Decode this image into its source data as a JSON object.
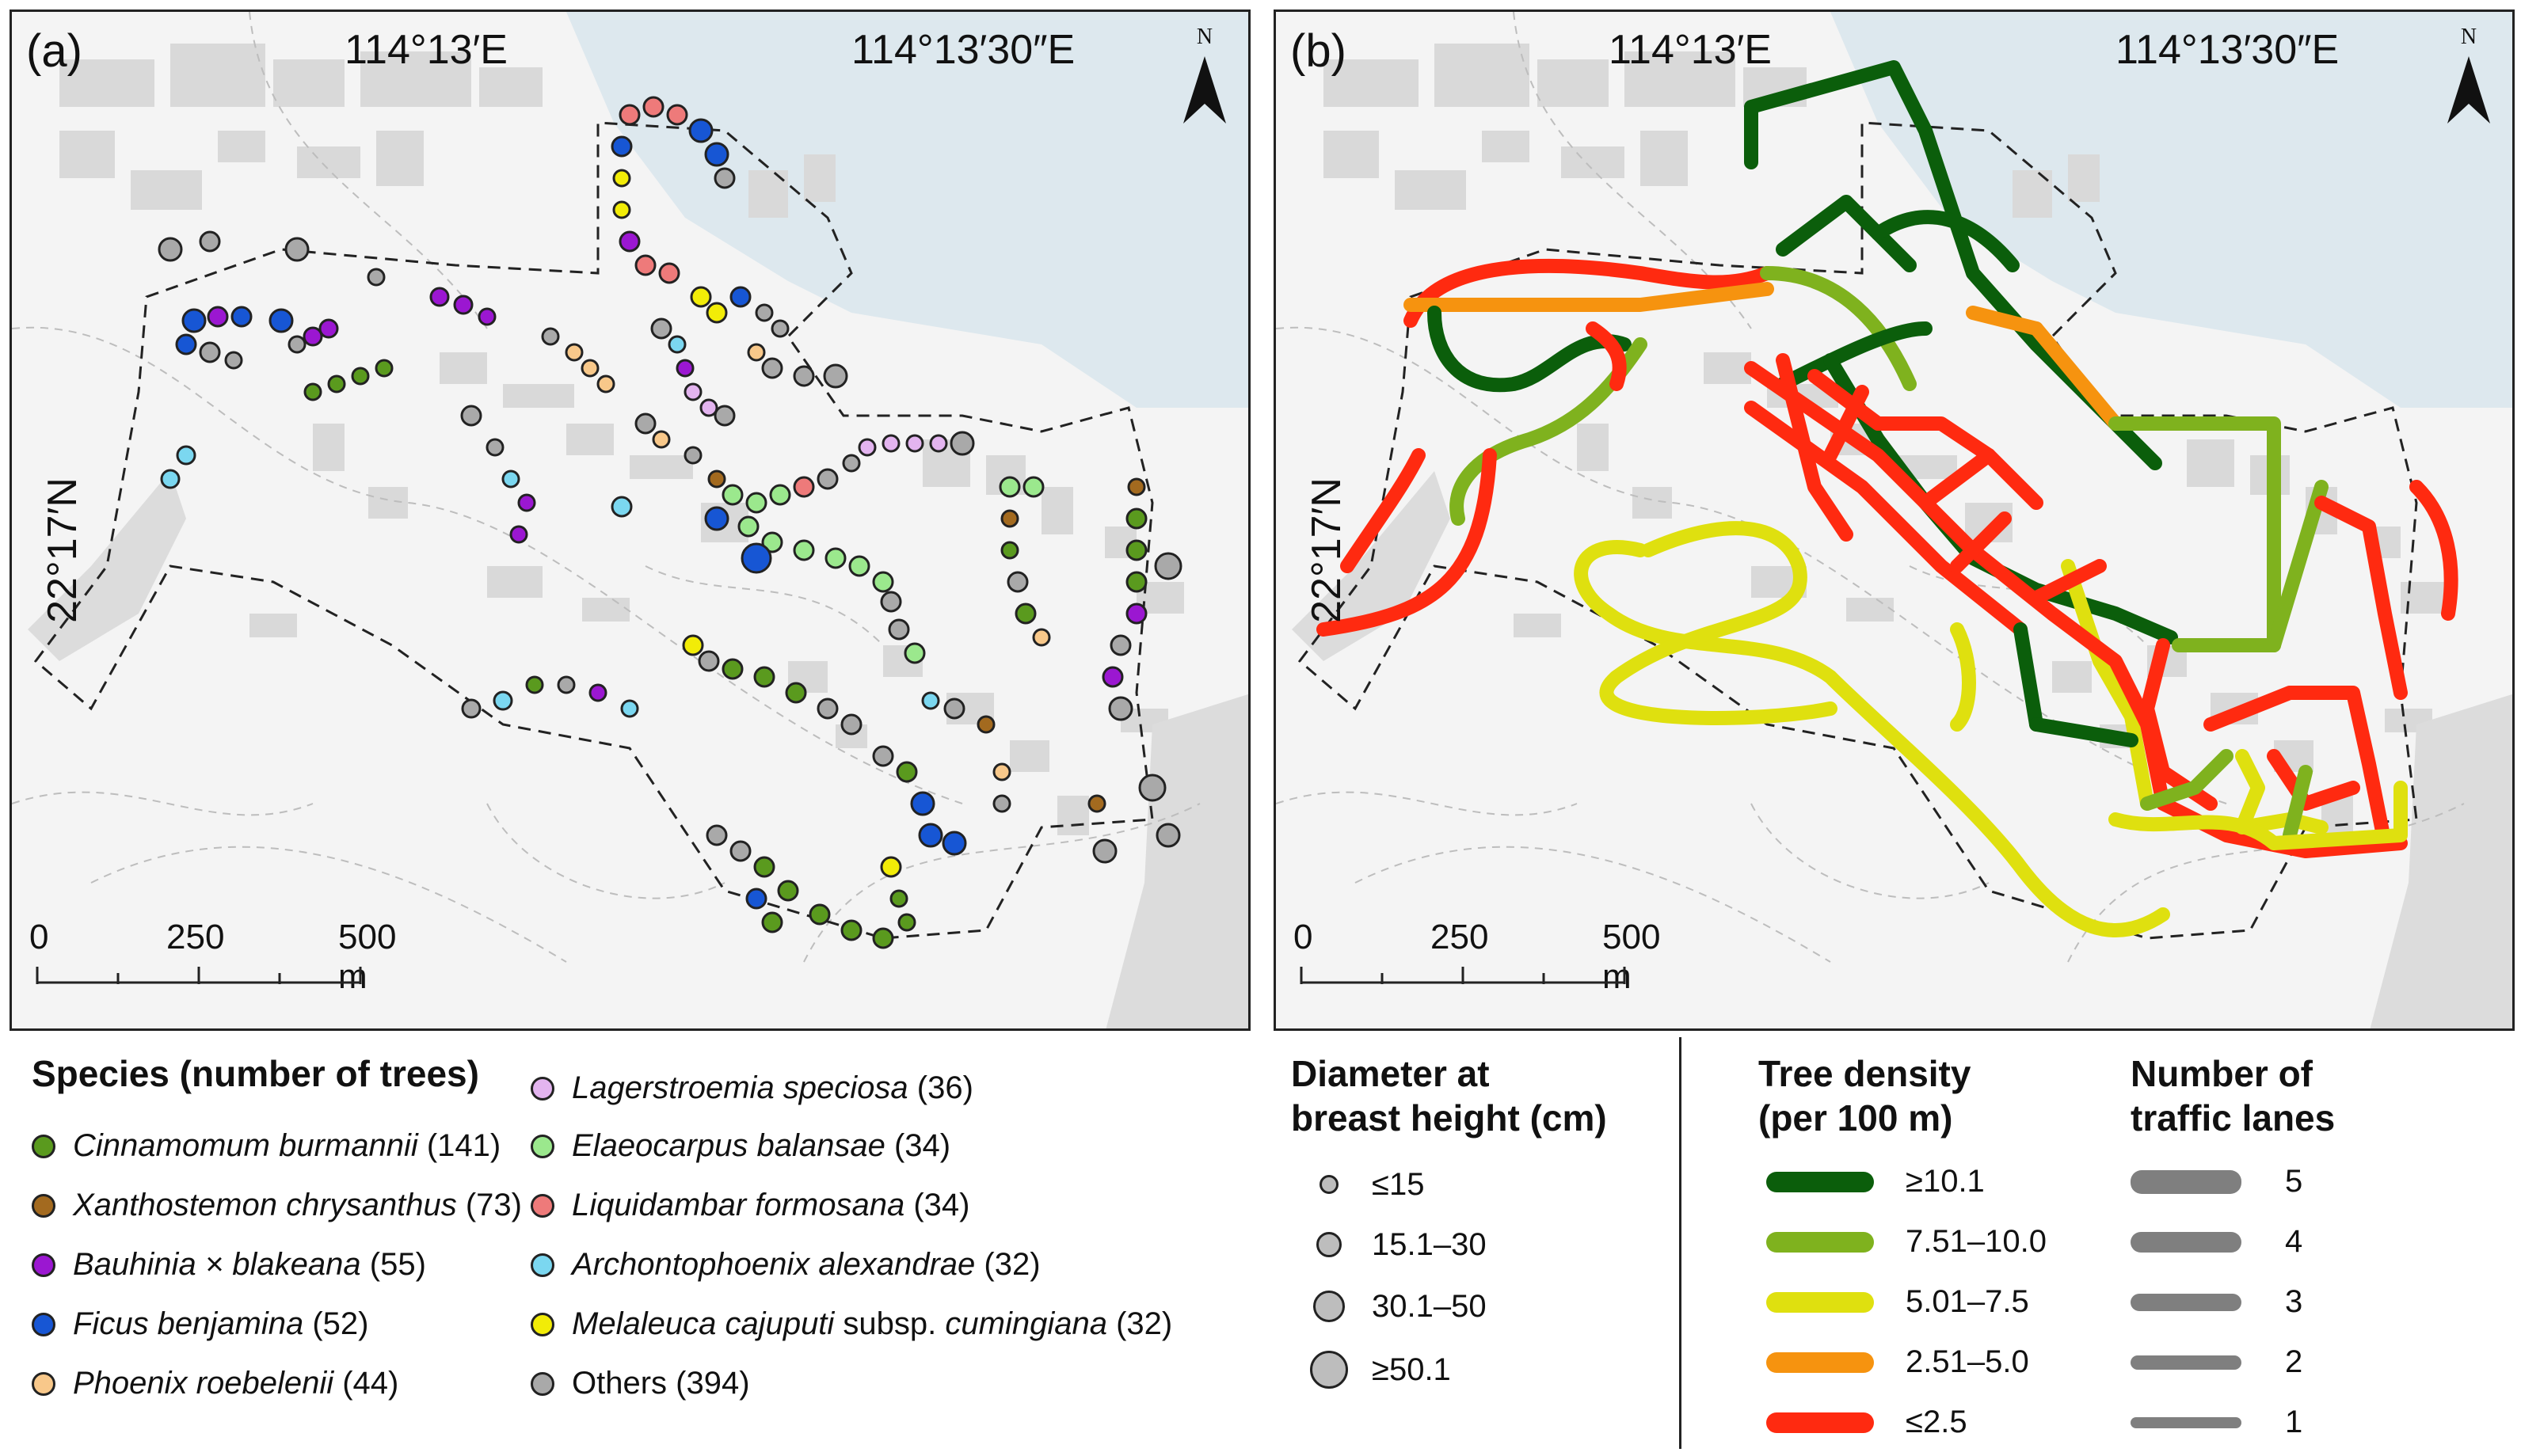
{
  "panels": {
    "a": {
      "label": "(a)",
      "lon1": "114°13′E",
      "lon2": "114°13′30″E",
      "lat": "22°17′N"
    },
    "b": {
      "label": "(b)",
      "lon1": "114°13′E",
      "lon2": "114°13′30″E",
      "lat": "22°17′N"
    }
  },
  "north_arrow": {
    "label": "N"
  },
  "scale_bar": {
    "ticks": [
      "0",
      "250",
      "500 m"
    ]
  },
  "colors": {
    "water": "#dde8ee",
    "land": "#f4f4f4",
    "building": "#d9d9d9",
    "cinnamomum": "#5a9a1e",
    "xanthostemon": "#a36a1f",
    "bauhinia": "#9b17d1",
    "ficus": "#1756d4",
    "phoenix": "#f8c88a",
    "lagerstroemia": "#e3b4ef",
    "elaeocarpus": "#9be88d",
    "liquidambar": "#ee7a7a",
    "archontophoenix": "#7bd7f0",
    "melaleuca": "#f2ec07",
    "others": "#a9a9a9",
    "dens_ge10": "#0b5e0b",
    "dens_7_10": "#7fb21e",
    "dens_5_7": "#dfe00f",
    "dens_2_5": "#f6930f",
    "dens_le2": "#ff2a10",
    "lane": "#7f7f7f"
  },
  "species_legend": {
    "title": "Species (number of trees)",
    "items": [
      {
        "name": "Cinnamomum burmannii",
        "extra": "",
        "count": "(141)",
        "color_key": "cinnamomum"
      },
      {
        "name": "Xanthostemon chrysanthus",
        "extra": "",
        "count": "(73)",
        "color_key": "xanthostemon"
      },
      {
        "name": "Bauhinia",
        "extra": " × blakeana",
        "count": "(55)",
        "color_key": "bauhinia"
      },
      {
        "name": "Ficus benjamina",
        "extra": "",
        "count": "(52)",
        "color_key": "ficus"
      },
      {
        "name": "Phoenix roebelenii",
        "extra": "",
        "count": "(44)",
        "color_key": "phoenix"
      },
      {
        "name": "Lagerstroemia speciosa",
        "extra": "",
        "count": "(36)",
        "color_key": "lagerstroemia"
      },
      {
        "name": "Elaeocarpus balansae",
        "extra": "",
        "count": "(34)",
        "color_key": "elaeocarpus"
      },
      {
        "name": "Liquidambar formosana",
        "extra": "",
        "count": "(34)",
        "color_key": "liquidambar"
      },
      {
        "name": "Archontophoenix alexandrae",
        "extra": "",
        "count": "(32)",
        "color_key": "archontophoenix"
      },
      {
        "name": "Melaleuca cajuputi",
        "extra": " subsp. ",
        "name2": "cumingiana",
        "count": "(32)",
        "color_key": "melaleuca"
      },
      {
        "name": "",
        "extra": "Others",
        "count": "(394)",
        "color_key": "others"
      }
    ]
  },
  "dbh_legend": {
    "title_line1": "Diameter at",
    "title_line2": "breast height (cm)",
    "items": [
      "≤15",
      "15.1–30",
      "30.1–50",
      "≥50.1"
    ]
  },
  "density_legend": {
    "title_line1": "Tree density",
    "title_line2": "(per 100 m)",
    "items": [
      {
        "label": "≥10.1",
        "color_key": "dens_ge10"
      },
      {
        "label": "7.51–10.0",
        "color_key": "dens_7_10"
      },
      {
        "label": "5.01–7.5",
        "color_key": "dens_5_7"
      },
      {
        "label": "2.51–5.0",
        "color_key": "dens_2_5"
      },
      {
        "label": "≤2.5",
        "color_key": "dens_le2"
      }
    ]
  },
  "lanes_legend": {
    "title_line1": "Number of",
    "title_line2": "traffic lanes",
    "items": [
      "5",
      "4",
      "3",
      "2",
      "1"
    ]
  }
}
